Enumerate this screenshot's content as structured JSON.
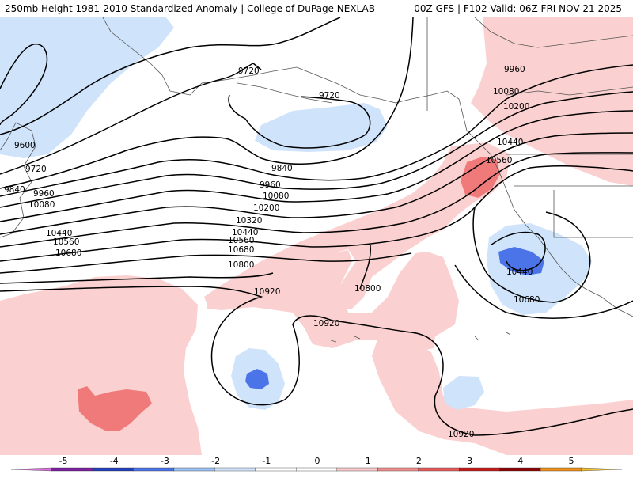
{
  "header": {
    "left_title": "250mb Height 1981-2010 Standardized Anomaly | College of DuPage NEXLAB",
    "right_title": "00Z GFS | F102 Valid: 06Z FRI NOV 21 2025"
  },
  "contour_labels": [
    {
      "id": "c9720a",
      "text": "9720"
    },
    {
      "id": "c9720b",
      "text": "9720"
    },
    {
      "id": "c9960a",
      "text": "9960"
    },
    {
      "id": "c10080a",
      "text": "10080"
    },
    {
      "id": "c10200a",
      "text": "10200"
    },
    {
      "id": "c10440a",
      "text": "10440"
    },
    {
      "id": "c10560a",
      "text": "10560"
    },
    {
      "id": "c9600",
      "text": "9600"
    },
    {
      "id": "c9720c",
      "text": "9720"
    },
    {
      "id": "c9840a",
      "text": "9840"
    },
    {
      "id": "c9960b",
      "text": "9960"
    },
    {
      "id": "c10080b",
      "text": "10080"
    },
    {
      "id": "c10440b",
      "text": "10440"
    },
    {
      "id": "c10560b",
      "text": "10560"
    },
    {
      "id": "c10680a",
      "text": "10680"
    },
    {
      "id": "c9840b",
      "text": "9840"
    },
    {
      "id": "c9960c",
      "text": "9960"
    },
    {
      "id": "c10080c",
      "text": "10080"
    },
    {
      "id": "c10200b",
      "text": "10200"
    },
    {
      "id": "c10320",
      "text": "10320"
    },
    {
      "id": "c10440c",
      "text": "10440"
    },
    {
      "id": "c10560c",
      "text": "10560"
    },
    {
      "id": "c10680b",
      "text": "10680"
    },
    {
      "id": "c10800a",
      "text": "10800"
    },
    {
      "id": "c10920a",
      "text": "10920"
    },
    {
      "id": "c10800b",
      "text": "10800"
    },
    {
      "id": "c10920b",
      "text": "10920"
    },
    {
      "id": "c10440d",
      "text": "10440"
    },
    {
      "id": "c10680c",
      "text": "10680"
    },
    {
      "id": "c10920c",
      "text": "10920"
    }
  ],
  "colorbar": {
    "ticks": [
      "-5",
      "-4",
      "-3",
      "-2",
      "-1",
      "0",
      "1",
      "2",
      "3",
      "4",
      "5"
    ],
    "colors": [
      "#e070e0",
      "#7a1fa0",
      "#1f3fbf",
      "#4a74e8",
      "#9cc3f5",
      "#cfe3fb",
      "#ffffff",
      "#ffffff",
      "#fbcaca",
      "#f28c8c",
      "#e85a5a",
      "#c51818",
      "#8b0000",
      "#f0901a",
      "#f2c030"
    ]
  },
  "colors": {
    "pos1": "#fbd0d0",
    "pos2": "#f07a7a",
    "neg1": "#cfe3fb",
    "neg2": "#4a74e8"
  }
}
